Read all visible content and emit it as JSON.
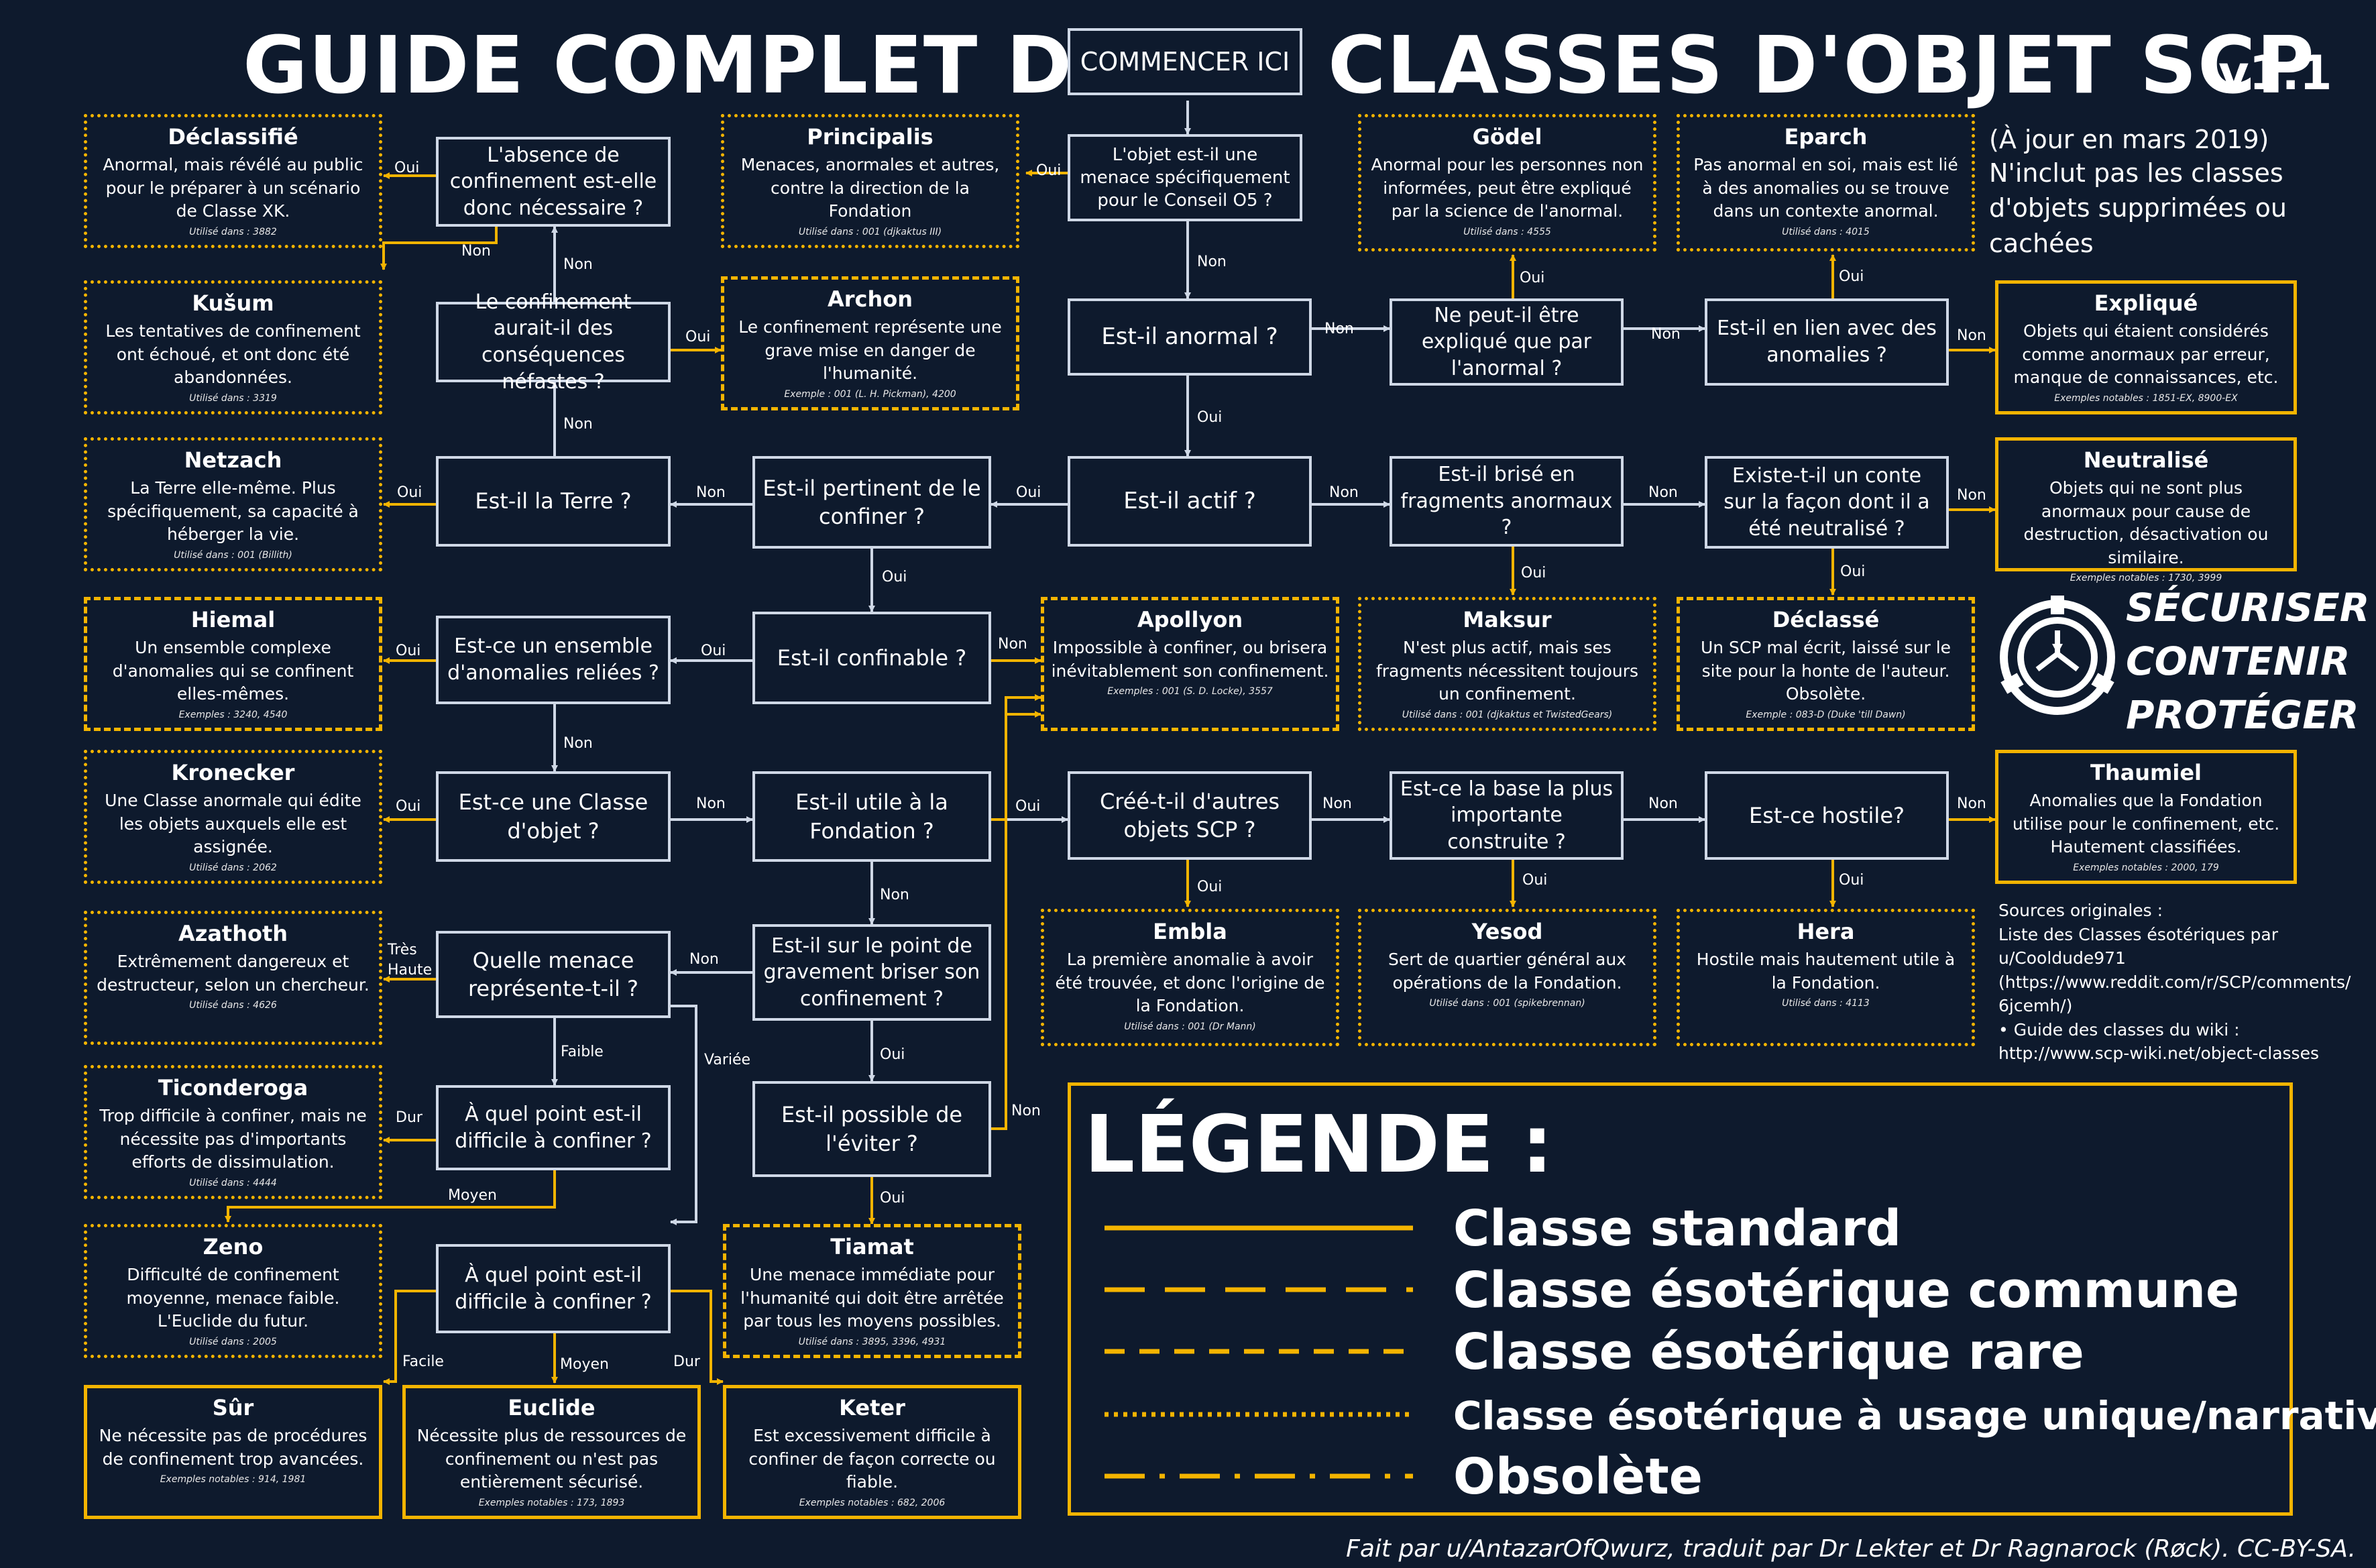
{
  "header": {
    "title_left": "GUIDE COMPLET DES",
    "start": "COMMENCER ICI",
    "title_right": "CLASSES D'OBJET SCP",
    "version": "v1.1"
  },
  "info": {
    "updated": "(À jour en mars 2019)",
    "note": "N'inclut pas les classes d'objets supprimées ou cachées"
  },
  "questions": {
    "q_o5": "L'objet est-il une menace spécifiquement pour le Conseil O5 ?",
    "q_anomalous": "Est-il anormal ?",
    "q_explained": "Ne peut-il être expliqué que par l'anormal ?",
    "q_related": "Est-il en lien avec des anomalies ?",
    "q_active": "Est-il actif ?",
    "q_fragments": "Est-il brisé en fragments anormaux ?",
    "q_story": "Existe-t-il un conte sur la façon dont il a été neutralisé ?",
    "q_relevant": "Est-il pertinent de le confiner ?",
    "q_earth": "Est-il la Terre ?",
    "q_harmful": "Le confinement aurait-il des conséquences néfastes ?",
    "q_necessary": "L'absence de confinement est-elle donc nécessaire ?",
    "q_containable": "Est-il confinable ?",
    "q_set": "Est-ce un ensemble d'anomalies reliées ?",
    "q_classobj": "Est-ce une Classe d'objet ?",
    "q_useful": "Est-il utile à la Fondation ?",
    "q_created": "Créé-t-il d'autres objets SCP ?",
    "q_base": "Est-ce la base la plus importante construite ?",
    "q_hostile": "Est-ce hostile?",
    "q_breach": "Est-il sur le point de gravement briser son confinement ?",
    "q_threat": "Quelle menace représente-t-il ?",
    "q_difficult1": "À quel point est-il difficile à confiner ?",
    "q_avoid": "Est-il possible de l'éviter ?",
    "q_difficult2": "À quel point est-il difficile à confiner ?"
  },
  "classes": {
    "declassifie": {
      "name": "Déclassifié",
      "desc": "Anormal, mais révélé au public pour le préparer à un scénario de Classe XK.",
      "use": "Utilisé dans : 3882"
    },
    "kusum": {
      "name": "Kušum",
      "desc": "Les tentatives de confinement ont échoué, et ont donc été abandonnées.",
      "use": "Utilisé dans : 3319"
    },
    "netzach": {
      "name": "Netzach",
      "desc": "La Terre elle-même. Plus spécifiquement, sa capacité à héberger la vie.",
      "use": "Utilisé dans : 001 (Billith)"
    },
    "hiemal": {
      "name": "Hiemal",
      "desc": "Un ensemble complexe d'anomalies qui se confinent elles-mêmes.",
      "use": "Exemples : 3240, 4540"
    },
    "kronecker": {
      "name": "Kronecker",
      "desc": "Une Classe anormale qui édite les objets auxquels elle est assignée.",
      "use": "Utilisé dans : 2062"
    },
    "azathoth": {
      "name": "Azathoth",
      "desc": "Extrêmement dangereux et destructeur, selon un chercheur.",
      "use": "Utilisé dans : 4626"
    },
    "ticonderoga": {
      "name": "Ticonderoga",
      "desc": "Trop difficile à confiner, mais ne nécessite pas d'importants efforts de dissimulation.",
      "use": "Utilisé dans : 4444"
    },
    "zeno": {
      "name": "Zeno",
      "desc": "Difficulté de confinement moyenne, menace faible. L'Euclide du futur.",
      "use": "Utilisé dans : 2005"
    },
    "sur": {
      "name": "Sûr",
      "desc": "Ne nécessite pas de procédures de confinement trop avancées.",
      "use": "Exemples notables : 914, 1981"
    },
    "euclide": {
      "name": "Euclide",
      "desc": "Nécessite plus de ressources de confinement ou n'est pas entièrement sécurisé.",
      "use": "Exemples notables : 173, 1893"
    },
    "keter": {
      "name": "Keter",
      "desc": "Est excessivement difficile à confiner de façon correcte ou fiable.",
      "use": "Exemples notables : 682, 2006"
    },
    "principalis": {
      "name": "Principalis",
      "desc": "Menaces, anormales et autres, contre la direction de la Fondation",
      "use": "Utilisé dans : 001 (djkaktus III)"
    },
    "archon": {
      "name": "Archon",
      "desc": "Le confinement représente une grave mise en danger de l'humanité.",
      "use": "Exemple : 001 (L. H. Pickman), 4200"
    },
    "tiamat": {
      "name": "Tiamat",
      "desc": "Une menace immédiate pour l'humanité qui doit être arrêtée par tous les moyens possibles.",
      "use": "Utilisé dans : 3895, 3396, 4931"
    },
    "apollyon": {
      "name": "Apollyon",
      "desc": "Impossible à confiner, ou brisera inévitablement son confinement.",
      "use": "Exemples : 001 (S. D. Locke), 3557"
    },
    "godel": {
      "name": "Gödel",
      "desc": "Anormal pour les personnes non informées, peut être expliqué par la science de l'anormal.",
      "use": "Utilisé dans : 4555"
    },
    "eparch": {
      "name": "Eparch",
      "desc": "Pas anormal en soi, mais est lié à des anomalies ou se trouve dans un contexte anormal.",
      "use": "Utilisé dans : 4015"
    },
    "explique": {
      "name": "Expliqué",
      "desc": "Objets qui étaient considérés comme anormaux par erreur, manque de connaissances, etc.",
      "use": "Exemples notables : 1851-EX, 8900-EX"
    },
    "neutralise": {
      "name": "Neutralisé",
      "desc": "Objets qui ne sont plus anormaux pour cause de destruction, désactivation ou similaire.",
      "use": "Exemples notables : 1730, 3999"
    },
    "maksur": {
      "name": "Maksur",
      "desc": "N'est plus actif, mais ses fragments nécessitent toujours un confinement.",
      "use": "Utilisé dans : 001 (djkaktus et TwistedGears)"
    },
    "declasse": {
      "name": "Déclassé",
      "desc": "Un SCP mal écrit, laissé sur le site pour la honte de l'auteur. Obsolète.",
      "use": "Exemple : 083-D (Duke 'till Dawn)"
    },
    "thaumiel": {
      "name": "Thaumiel",
      "desc": "Anomalies que la Fondation utilise pour le confinement, etc. Hautement classifiées.",
      "use": "Exemples notables : 2000, 179"
    },
    "embla": {
      "name": "Embla",
      "desc": "La première anomalie à avoir été trouvée, et donc l'origine de la Fondation.",
      "use": "Utilisé dans : 001 (Dr Mann)"
    },
    "yesod": {
      "name": "Yesod",
      "desc": "Sert de quartier général aux opérations de la Fondation.",
      "use": "Utilisé dans : 001 (spikebrennan)"
    },
    "hera": {
      "name": "Hera",
      "desc": "Hostile mais hautement utile à la Fondation.",
      "use": "Utilisé dans : 4113"
    }
  },
  "edges": {
    "oui": "Oui",
    "non": "Non",
    "tres_haute": "Très Haute",
    "faible": "Faible",
    "variee": "Variée",
    "dur": "Dur",
    "moyen": "Moyen",
    "facile": "Facile"
  },
  "logo": {
    "l1": "SÉCURISER",
    "l2": "CONTENIR",
    "l3": "PROTÉGER"
  },
  "sources": {
    "title": "Sources originales :",
    "s1": "Liste des Classes ésotériques par",
    "s2": "u/Cooldude971",
    "s3": "(https://www.reddit.com/r/SCP/comments/",
    "s4": "6jcemh/)",
    "s5": "• Guide des classes du wiki :",
    "s6": "http://www.scp-wiki.net/object-classes"
  },
  "legend": {
    "title": "LÉGENDE :",
    "standard": "Classe standard",
    "common": "Classe ésotérique commune",
    "rare": "Classe ésotérique rare",
    "unique": "Classe ésotérique à usage unique/narrative",
    "obsolete": "Obsolète"
  },
  "credit": "Fait par u/AntazarOfQwurz, traduit par Dr Lekter et Dr Ragnarock (Røck). CC-BY-SA.",
  "colors": {
    "background": "#0e1a2d",
    "accent": "#f4b400",
    "question_border": "#cfd8e6"
  }
}
